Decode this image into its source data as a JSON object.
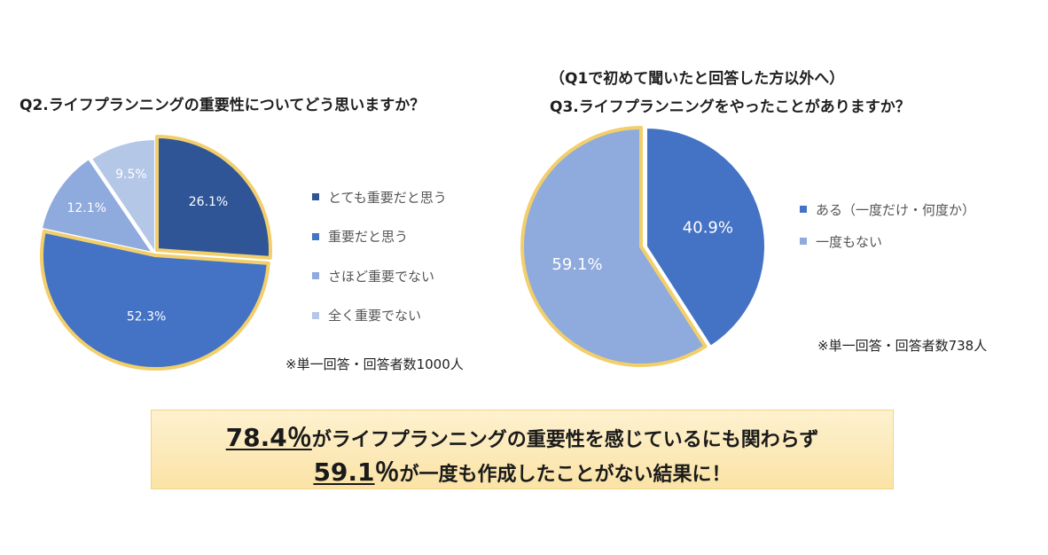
{
  "chart_data": [
    {
      "type": "pie",
      "title": "Q2.ライフプランニングの重要性についてどう思いますか？",
      "categories": [
        "とても重要だと思う",
        "重要だと思う",
        "さほど重要でない",
        "全く重要でない"
      ],
      "values": [
        26.1,
        52.3,
        12.1,
        9.5
      ],
      "labels": [
        "26.1%",
        "52.3%",
        "12.1%",
        "9.5%"
      ],
      "colors": [
        "#2f5597",
        "#4472c4",
        "#8faadc",
        "#b4c7e7"
      ],
      "highlight_border_color": "#f2cf6b",
      "highlighted": [
        0,
        1
      ],
      "legend_position": "right",
      "note": "※単一回答・回答者数1000人"
    },
    {
      "type": "pie",
      "subtitle": "（Q1で初めて聞いたと回答した方以外へ）",
      "title": "Q3.ライフプランニングをやったことがありますか？",
      "categories": [
        "ある（一度だけ・何度か）",
        "一度もない"
      ],
      "values": [
        40.9,
        59.1
      ],
      "labels": [
        "40.9%",
        "59.1%"
      ],
      "colors": [
        "#4472c4",
        "#8faadc"
      ],
      "highlight_border_color": "#f2cf6b",
      "highlighted": [
        1
      ],
      "legend_position": "right",
      "note": "※単一回答・回答者数738人"
    }
  ],
  "banner": {
    "line1_value": "78.4％",
    "line1_text": "がライフプランニングの重要性を感じているにも関わらず",
    "line2_value": "59.1",
    "line2_unit": "％",
    "line2_text": "が一度も作成したことがない結果に！"
  }
}
